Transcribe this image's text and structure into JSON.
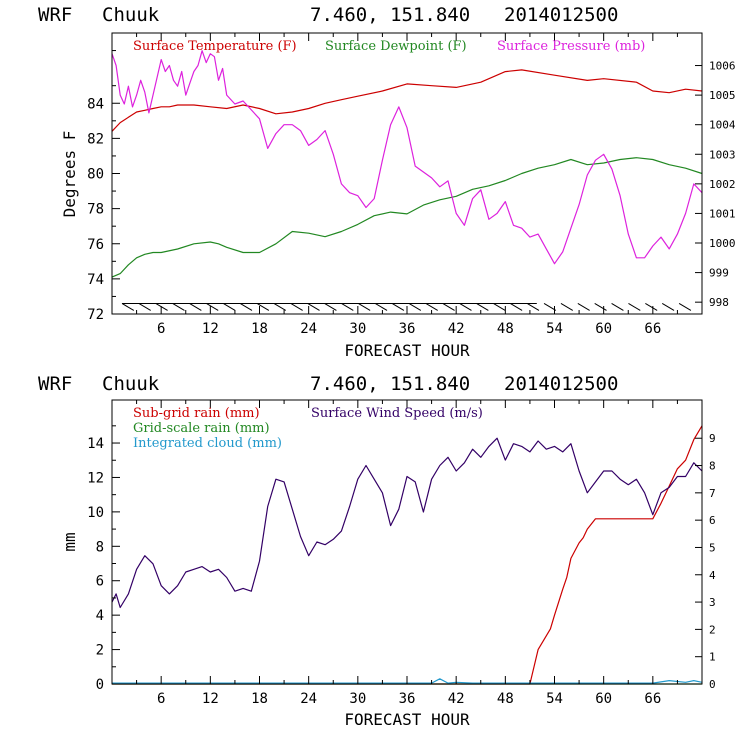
{
  "chart_data": [
    {
      "type": "line",
      "header": {
        "model": "WRF",
        "station": "Chuuk",
        "coords": "7.460, 151.840",
        "date": "2014012500"
      },
      "xlabel": "FORECAST HOUR",
      "ylabel": "Degrees F",
      "xlim": [
        0,
        72
      ],
      "ylim": [
        72,
        88
      ],
      "x_ticks": [
        6,
        12,
        18,
        24,
        30,
        36,
        42,
        48,
        54,
        60,
        66
      ],
      "x_tick_labels": [
        "6",
        "12",
        "18",
        "24",
        "30",
        "36",
        "42",
        "48",
        "54",
        "60",
        "66"
      ],
      "y_ticks": [
        72,
        74,
        76,
        78,
        80,
        82,
        84
      ],
      "y_tick_labels": [
        "72",
        "74",
        "76",
        "78",
        "80",
        "82",
        "84"
      ],
      "y2lim": [
        997.6,
        1007.1
      ],
      "y2_ticks": [
        998,
        999,
        1000,
        1001,
        1002,
        1003,
        1004,
        1005,
        1006
      ],
      "y2_tick_labels": [
        "998",
        "999",
        "1000",
        "1001",
        "1002",
        "1003",
        "1004",
        "1005",
        "1006"
      ],
      "wind_barbs": {
        "y": 72.6,
        "color": "#000000",
        "count": 34
      },
      "series": [
        {
          "name": "Surface Temperature (F)",
          "color": "#cc0000",
          "axis": "left",
          "x": [
            0,
            1,
            2,
            3,
            4,
            5,
            6,
            7,
            8,
            9,
            10,
            12,
            14,
            16,
            18,
            20,
            22,
            24,
            26,
            28,
            30,
            33,
            36,
            39,
            42,
            45,
            48,
            50,
            54,
            58,
            60,
            64,
            66,
            68,
            70,
            72
          ],
          "y": [
            82.4,
            82.9,
            83.2,
            83.5,
            83.6,
            83.7,
            83.8,
            83.8,
            83.9,
            83.9,
            83.9,
            83.8,
            83.7,
            83.9,
            83.7,
            83.4,
            83.5,
            83.7,
            84.0,
            84.2,
            84.4,
            84.7,
            85.1,
            85.0,
            84.9,
            85.2,
            85.8,
            85.9,
            85.6,
            85.3,
            85.4,
            85.2,
            84.7,
            84.6,
            84.8,
            84.7
          ]
        },
        {
          "name": "Surface Dewpoint (F)",
          "color": "#228822",
          "axis": "left",
          "x": [
            0,
            1,
            2,
            3,
            4,
            5,
            6,
            8,
            10,
            12,
            13,
            14,
            16,
            18,
            20,
            22,
            24,
            26,
            28,
            30,
            32,
            34,
            36,
            38,
            40,
            42,
            44,
            46,
            48,
            50,
            52,
            54,
            56,
            58,
            60,
            62,
            64,
            66,
            68,
            70,
            72
          ],
          "y": [
            74.1,
            74.3,
            74.8,
            75.2,
            75.4,
            75.5,
            75.5,
            75.7,
            76.0,
            76.1,
            76.0,
            75.8,
            75.5,
            75.5,
            76.0,
            76.7,
            76.6,
            76.4,
            76.7,
            77.1,
            77.6,
            77.8,
            77.7,
            78.2,
            78.5,
            78.7,
            79.1,
            79.3,
            79.6,
            80.0,
            80.3,
            80.5,
            80.8,
            80.5,
            80.6,
            80.8,
            80.9,
            80.8,
            80.5,
            80.3,
            80.0
          ]
        },
        {
          "name": "Surface Pressure (mb)",
          "color": "#dd22dd",
          "axis": "right",
          "x": [
            0,
            0.5,
            1,
            1.5,
            2,
            2.5,
            3,
            3.5,
            4,
            4.5,
            5,
            5.5,
            6,
            6.5,
            7,
            7.5,
            8,
            8.5,
            9,
            9.5,
            10,
            10.5,
            11,
            11.5,
            12,
            12.5,
            13,
            13.5,
            14,
            15,
            16,
            17,
            18,
            19,
            20,
            21,
            22,
            23,
            24,
            25,
            26,
            27,
            28,
            29,
            30,
            31,
            32,
            33,
            34,
            35,
            36,
            37,
            38,
            39,
            40,
            41,
            42,
            43,
            44,
            45,
            46,
            47,
            48,
            49,
            50,
            51,
            52,
            53,
            54,
            55,
            56,
            57,
            58,
            59,
            60,
            61,
            62,
            63,
            64,
            65,
            66,
            67,
            68,
            69,
            70,
            71,
            72
          ],
          "y": [
            1006.4,
            1006.0,
            1005.0,
            1004.7,
            1005.3,
            1004.6,
            1005.0,
            1005.5,
            1005.1,
            1004.4,
            1005.0,
            1005.6,
            1006.2,
            1005.8,
            1006.0,
            1005.5,
            1005.3,
            1005.8,
            1005.0,
            1005.4,
            1005.8,
            1006.0,
            1006.5,
            1006.1,
            1006.4,
            1006.3,
            1005.5,
            1005.9,
            1005.0,
            1004.7,
            1004.8,
            1004.5,
            1004.2,
            1003.2,
            1003.7,
            1004.0,
            1004.0,
            1003.8,
            1003.3,
            1003.5,
            1003.8,
            1003.0,
            1002.0,
            1001.7,
            1001.6,
            1001.2,
            1001.5,
            1002.8,
            1004.0,
            1004.6,
            1003.9,
            1002.6,
            1002.4,
            1002.2,
            1001.9,
            1002.1,
            1001.0,
            1000.6,
            1001.5,
            1001.8,
            1000.8,
            1001.0,
            1001.4,
            1000.6,
            1000.5,
            1000.2,
            1000.3,
            999.8,
            999.3,
            999.7,
            1000.5,
            1001.3,
            1002.3,
            1002.8,
            1003.0,
            1002.5,
            1001.6,
            1000.3,
            999.5,
            999.5,
            999.9,
            1000.2,
            999.8,
            1000.3,
            1001.0,
            1002.0,
            1001.7
          ]
        }
      ]
    },
    {
      "type": "line",
      "header": {
        "model": "WRF",
        "station": "Chuuk",
        "coords": "7.460, 151.840",
        "date": "2014012500"
      },
      "xlabel": "FORECAST HOUR",
      "ylabel": "mm",
      "xlim": [
        0,
        72
      ],
      "ylim": [
        0,
        16.5
      ],
      "x_ticks": [
        6,
        12,
        18,
        24,
        30,
        36,
        42,
        48,
        54,
        60,
        66
      ],
      "x_tick_labels": [
        "6",
        "12",
        "18",
        "24",
        "30",
        "36",
        "42",
        "48",
        "54",
        "60",
        "66"
      ],
      "y_ticks": [
        0,
        2,
        4,
        6,
        8,
        10,
        12,
        14
      ],
      "y_tick_labels": [
        "0",
        "2",
        "4",
        "6",
        "8",
        "10",
        "12",
        "14"
      ],
      "y2lim": [
        0,
        10.4
      ],
      "y2_ticks": [
        0,
        1,
        2,
        3,
        4,
        5,
        6,
        7,
        8,
        9
      ],
      "y2_tick_labels": [
        "0",
        "1",
        "2",
        "3",
        "4",
        "5",
        "6",
        "7",
        "8",
        "9"
      ],
      "series": [
        {
          "name": "Sub-grid rain (mm)",
          "color": "#cc0000",
          "axis": "left",
          "x": [
            0,
            51,
            52,
            53,
            53.5,
            54,
            55,
            55.5,
            56,
            57,
            57.5,
            58,
            59,
            66,
            67,
            68,
            69,
            70,
            71,
            72
          ],
          "y": [
            0,
            0,
            2.0,
            2.8,
            3.2,
            4.0,
            5.5,
            6.2,
            7.3,
            8.2,
            8.5,
            9.0,
            9.6,
            9.6,
            10.5,
            11.5,
            12.5,
            13.0,
            14.2,
            15.0
          ]
        },
        {
          "name": "Grid-scale rain (mm)",
          "color": "#228822",
          "axis": "left",
          "x": [
            0,
            72
          ],
          "y": [
            0,
            0
          ]
        },
        {
          "name": "Integrated cloud (mm)",
          "color": "#2299cc",
          "axis": "left",
          "x": [
            0,
            39,
            40,
            41,
            42,
            44,
            66,
            68,
            70,
            71,
            72
          ],
          "y": [
            0.05,
            0.05,
            0.3,
            0.05,
            0.1,
            0.05,
            0.05,
            0.2,
            0.1,
            0.2,
            0.1
          ]
        },
        {
          "name": "Surface Wind Speed (m/s)",
          "color": "#330066",
          "axis": "right",
          "x": [
            0,
            0.5,
            1,
            2,
            3,
            4,
            5,
            6,
            7,
            8,
            9,
            10,
            11,
            12,
            13,
            14,
            15,
            16,
            17,
            18,
            19,
            20,
            21,
            22,
            23,
            24,
            25,
            26,
            27,
            28,
            29,
            30,
            31,
            32,
            33,
            34,
            35,
            36,
            37,
            38,
            39,
            40,
            41,
            42,
            43,
            44,
            45,
            46,
            47,
            48,
            49,
            50,
            51,
            52,
            53,
            54,
            55,
            56,
            57,
            58,
            59,
            60,
            61,
            62,
            63,
            64,
            65,
            66,
            67,
            68,
            69,
            70,
            71,
            72
          ],
          "y": [
            3.0,
            3.3,
            2.8,
            3.3,
            4.2,
            4.7,
            4.4,
            3.6,
            3.3,
            3.6,
            4.1,
            4.2,
            4.3,
            4.1,
            4.2,
            3.9,
            3.4,
            3.5,
            3.4,
            4.5,
            6.5,
            7.5,
            7.4,
            6.4,
            5.4,
            4.7,
            5.2,
            5.1,
            5.3,
            5.6,
            6.5,
            7.5,
            8.0,
            7.5,
            7.0,
            5.8,
            6.4,
            7.6,
            7.4,
            6.3,
            7.5,
            8.0,
            8.3,
            7.8,
            8.1,
            8.6,
            8.3,
            8.7,
            9.0,
            8.2,
            8.8,
            8.7,
            8.5,
            8.9,
            8.6,
            8.7,
            8.5,
            8.8,
            7.8,
            7.0,
            7.4,
            7.8,
            7.8,
            7.5,
            7.3,
            7.5,
            7.0,
            6.2,
            7.0,
            7.2,
            7.6,
            7.6,
            8.1,
            7.8
          ]
        }
      ]
    }
  ]
}
